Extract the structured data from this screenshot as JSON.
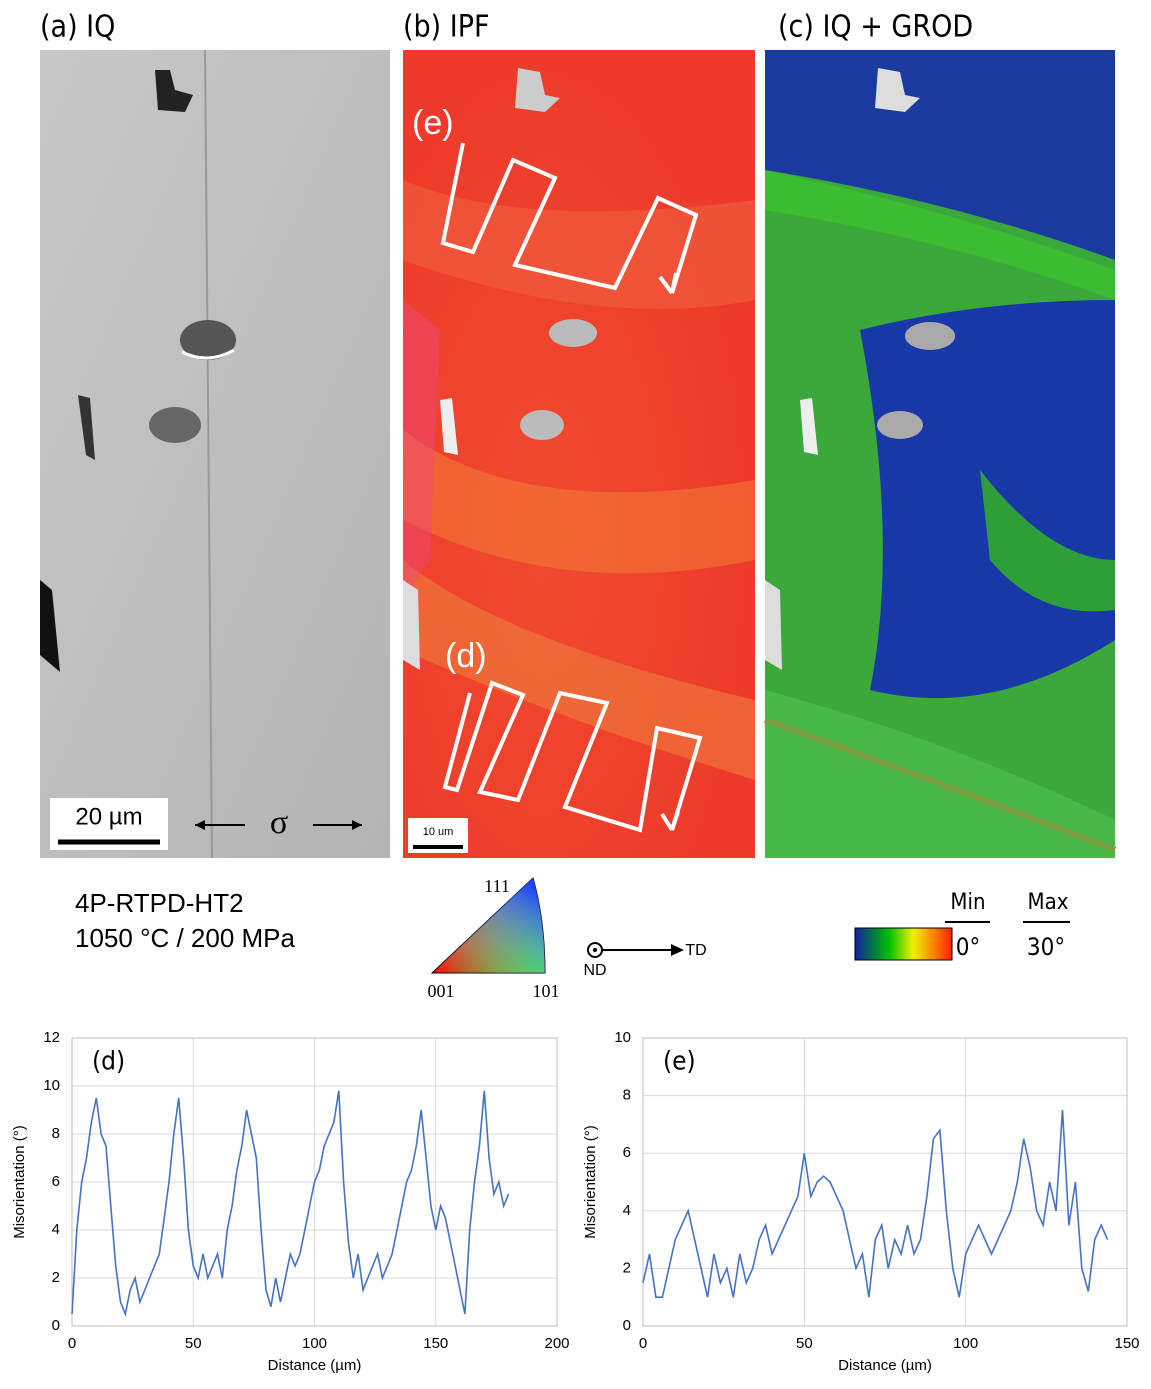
{
  "panels": [
    {
      "label": "(a) IQ",
      "scale_bar": "20 µm",
      "stress": "σ"
    },
    {
      "label": "(b) IPF",
      "scale_bar": "10 um",
      "paths": [
        "(e)",
        "(d)"
      ]
    },
    {
      "label": "(c) IQ + GROD"
    }
  ],
  "sample": [
    "4P-RTPD-HT2",
    "1050 °C / 200 MPa"
  ],
  "ipf_key": {
    "corners": [
      "111",
      "001",
      "101"
    ],
    "axes": [
      "ND",
      "TD"
    ]
  },
  "grod_key": {
    "min_label": "Min",
    "max_label": "Max",
    "min": "0°",
    "max": "30°"
  },
  "chart_data": [
    {
      "type": "line",
      "annotation": "(d)",
      "x_label": "Distance (µm)",
      "y_label": "Misorientation (°)",
      "color": "#4472c4",
      "grid": true,
      "xlim": [
        0,
        200
      ],
      "xticks": [
        0,
        50,
        100,
        150,
        200
      ],
      "ylim": [
        0,
        12
      ],
      "yticks": [
        0,
        2,
        4,
        6,
        8,
        10,
        12
      ],
      "x": [
        0,
        2,
        4,
        6,
        8,
        10,
        12,
        14,
        16,
        18,
        20,
        22,
        24,
        26,
        28,
        30,
        32,
        34,
        36,
        38,
        40,
        42,
        44,
        46,
        48,
        50,
        52,
        54,
        56,
        58,
        60,
        62,
        64,
        66,
        68,
        70,
        72,
        74,
        76,
        78,
        80,
        82,
        84,
        86,
        88,
        90,
        92,
        94,
        96,
        98,
        100,
        102,
        104,
        106,
        108,
        110,
        112,
        114,
        116,
        118,
        120,
        122,
        124,
        126,
        128,
        130,
        132,
        134,
        136,
        138,
        140,
        142,
        144,
        146,
        148,
        150,
        152,
        154,
        156,
        158,
        160,
        162,
        164,
        166,
        168,
        170,
        172,
        174,
        176,
        178,
        180
      ],
      "values": [
        0.5,
        4,
        6,
        7,
        8.5,
        9.5,
        8,
        7.5,
        5,
        2.5,
        1,
        0.5,
        1.5,
        2,
        1,
        1.5,
        2,
        2.5,
        3,
        4.5,
        6,
        8,
        9.5,
        7,
        4,
        2.5,
        2,
        3,
        2,
        2.5,
        3,
        2,
        4,
        5,
        6.5,
        7.5,
        9,
        8,
        7,
        4,
        1.5,
        0.8,
        2,
        1,
        2,
        3,
        2.5,
        3,
        4,
        5,
        6,
        6.5,
        7.5,
        8,
        8.5,
        9.8,
        6,
        3.5,
        2,
        3,
        1.5,
        2,
        2.5,
        3,
        2,
        2.5,
        3,
        4,
        5,
        6,
        6.5,
        7.5,
        9,
        7,
        5,
        4,
        5,
        4.5,
        3.5,
        2.5,
        1.5,
        0.5,
        4,
        6,
        7.5,
        9.8,
        7,
        5.5,
        6,
        5,
        5.5
      ]
    },
    {
      "type": "line",
      "annotation": "(e)",
      "x_label": "Distance (µm)",
      "y_label": "Misorientation (°)",
      "color": "#4472c4",
      "grid": true,
      "xlim": [
        0,
        150
      ],
      "xticks": [
        0,
        50,
        100,
        150
      ],
      "ylim": [
        0,
        10
      ],
      "yticks": [
        0,
        2,
        4,
        6,
        8,
        10
      ],
      "x": [
        0,
        2,
        4,
        6,
        8,
        10,
        12,
        14,
        16,
        18,
        20,
        22,
        24,
        26,
        28,
        30,
        32,
        34,
        36,
        38,
        40,
        42,
        44,
        46,
        48,
        50,
        52,
        54,
        56,
        58,
        60,
        62,
        64,
        66,
        68,
        70,
        72,
        74,
        76,
        78,
        80,
        82,
        84,
        86,
        88,
        90,
        92,
        94,
        96,
        98,
        100,
        102,
        104,
        106,
        108,
        110,
        112,
        114,
        116,
        118,
        120,
        122,
        124,
        126,
        128,
        130,
        132,
        134,
        136,
        138,
        140,
        142,
        144
      ],
      "values": [
        1.5,
        2.5,
        1,
        1,
        2,
        3,
        3.5,
        4,
        3,
        2,
        1,
        2.5,
        1.5,
        2,
        1,
        2.5,
        1.5,
        2,
        3,
        3.5,
        2.5,
        3,
        3.5,
        4,
        4.5,
        6,
        4.5,
        5,
        5.2,
        5,
        4.5,
        4,
        3,
        2,
        2.5,
        1,
        3,
        3.5,
        2,
        3,
        2.5,
        3.5,
        2.5,
        3,
        4.5,
        6.5,
        6.8,
        4,
        2,
        1,
        2.5,
        3,
        3.5,
        3,
        2.5,
        3,
        3.5,
        4,
        5,
        6.5,
        5.5,
        4,
        3.5,
        5,
        4,
        7.5,
        3.5,
        5,
        2,
        1.2,
        3,
        3.5,
        3
      ]
    }
  ]
}
